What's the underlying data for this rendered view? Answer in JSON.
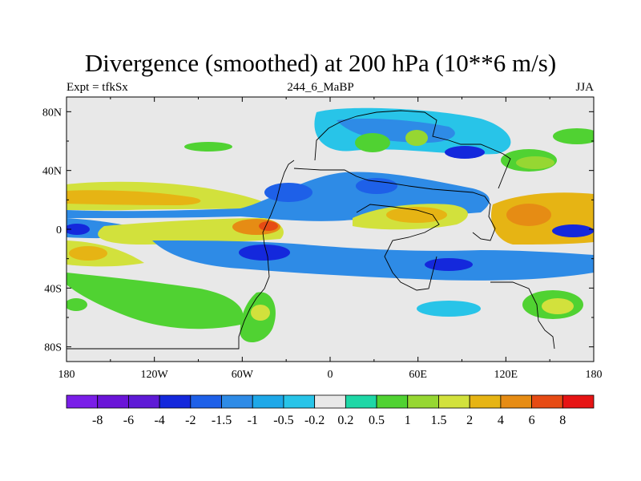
{
  "title": "Divergence (smoothed) at 200 hPa (10**6 m/s)",
  "left_string": "Expt = tfkSx",
  "center_string": "244_6_MaBP",
  "right_string": "JJA",
  "map": {
    "projection": "cylindrical-equidistant",
    "lon_range": [
      -180,
      180
    ],
    "lat_range": [
      -90,
      90
    ],
    "background_color": "#e8e8e8",
    "lon_ticks": [
      {
        "value": -180,
        "label": "180"
      },
      {
        "value": -120,
        "label": "120W"
      },
      {
        "value": -60,
        "label": "60W"
      },
      {
        "value": 0,
        "label": "0"
      },
      {
        "value": 60,
        "label": "60E"
      },
      {
        "value": 120,
        "label": "120E"
      },
      {
        "value": 180,
        "label": "180"
      }
    ],
    "lat_ticks": [
      {
        "value": 80,
        "label": "80N"
      },
      {
        "value": 40,
        "label": "40N"
      },
      {
        "value": 0,
        "label": "0"
      },
      {
        "value": -40,
        "label": "40S"
      },
      {
        "value": -80,
        "label": "80S"
      }
    ]
  },
  "colorbar": {
    "colors": [
      "#7a1ee8",
      "#6a14d8",
      "#5e1ad6",
      "#1428dc",
      "#1e60e8",
      "#2e8be6",
      "#1ea8e8",
      "#28c4e8",
      "#e8e8e8",
      "#1ed7a6",
      "#50d232",
      "#96d732",
      "#d2e13c",
      "#e6b414",
      "#e68c14",
      "#e64b14",
      "#e61414"
    ],
    "labels": [
      "-8",
      "-6",
      "-4",
      "-2",
      "-1.5",
      "-1",
      "-0.5",
      "-0.2",
      "0.2",
      "0.5",
      "1",
      "1.5",
      "2",
      "4",
      "6",
      "8"
    ]
  }
}
